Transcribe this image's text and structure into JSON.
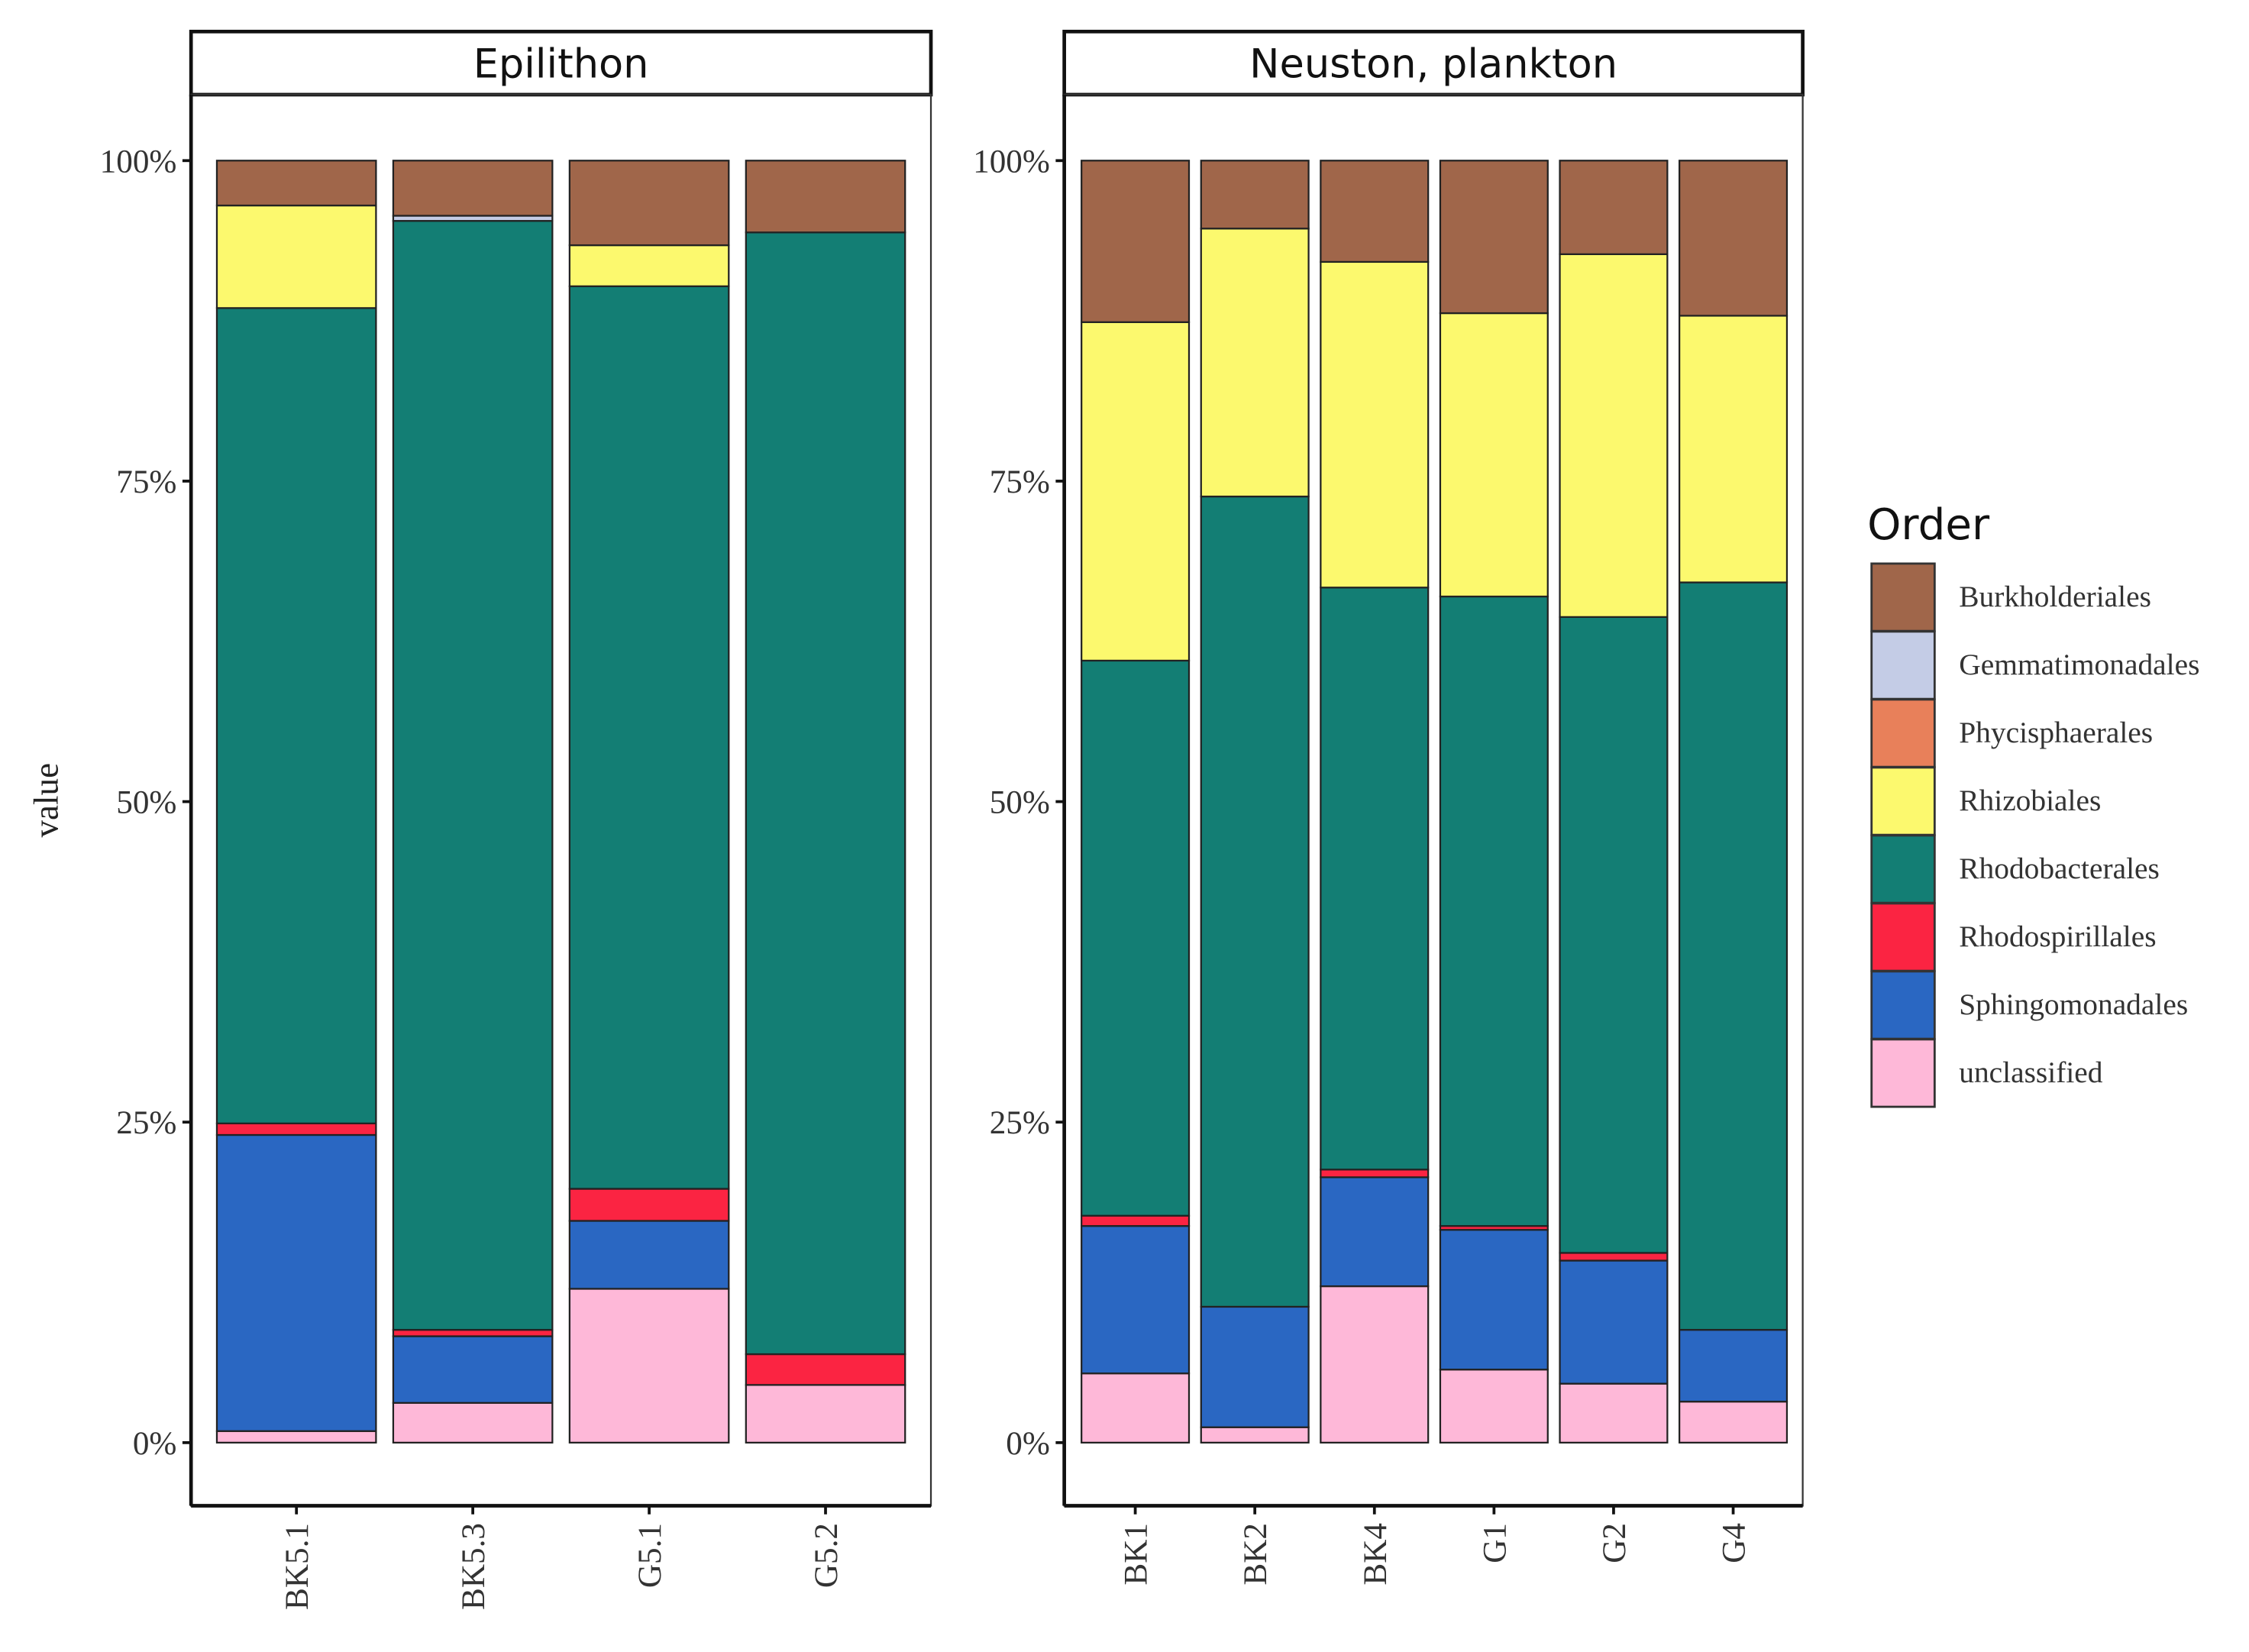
{
  "chart_data": {
    "type": "bar",
    "stacked": true,
    "normalized": true,
    "ylabel": "value",
    "xlabel": "",
    "ylim": [
      0,
      100
    ],
    "yticks": [
      "0%",
      "25%",
      "50%",
      "75%",
      "100%"
    ],
    "ytick_values": [
      0,
      25,
      50,
      75,
      100
    ],
    "legend": {
      "title": "Order",
      "placement": "right",
      "entries": [
        "Burkholderiales",
        "Gemmatimonadales",
        "Phycisphaerales",
        "Rhizobiales",
        "Rhodobacterales",
        "Rhodospirillales",
        "Sphingomonadales",
        "unclassified"
      ]
    },
    "colors": {
      "Burkholderiales": "#a0664a",
      "Gemmatimonadales": "#c4cce6",
      "Phycisphaerales": "#e8805a",
      "Rhizobiales": "#fcf96e",
      "Rhodobacterales": "#137e74",
      "Rhodospirillales": "#fb2442",
      "Sphingomonadales": "#2a67c2",
      "unclassified": "#feb8d8"
    },
    "stack_order_bottom_to_top": [
      "unclassified",
      "Sphingomonadales",
      "Rhodospirillales",
      "Rhodobacterales",
      "Rhizobiales",
      "Phycisphaerales",
      "Gemmatimonadales",
      "Burkholderiales"
    ],
    "panels": [
      {
        "title": "Epilithon",
        "categories": [
          "BK5.1",
          "BK5.3",
          "G5.1",
          "G5.2"
        ],
        "series": [
          {
            "name": "unclassified",
            "values": [
              0.9,
              3.1,
              12.0,
              4.5
            ]
          },
          {
            "name": "Sphingomonadales",
            "values": [
              23.1,
              5.2,
              5.3,
              0
            ]
          },
          {
            "name": "Rhodospirillales",
            "values": [
              0.9,
              0.5,
              2.5,
              2.4
            ]
          },
          {
            "name": "Rhodobacterales",
            "values": [
              63.6,
              86.5,
              70.4,
              87.5
            ]
          },
          {
            "name": "Rhizobiales",
            "values": [
              8.0,
              0,
              3.2,
              0
            ]
          },
          {
            "name": "Phycisphaerales",
            "values": [
              0,
              0,
              0,
              0
            ]
          },
          {
            "name": "Gemmatimonadales",
            "values": [
              0,
              0.4,
              0,
              0
            ]
          },
          {
            "name": "Burkholderiales",
            "values": [
              3.5,
              4.3,
              6.6,
              5.6
            ]
          }
        ]
      },
      {
        "title": "Neuston, plankton",
        "categories": [
          "BK1",
          "BK2",
          "BK4",
          "G1",
          "G2",
          "G4"
        ],
        "series": [
          {
            "name": "unclassified",
            "values": [
              5.4,
              1.2,
              12.2,
              5.7,
              4.6,
              3.2
            ]
          },
          {
            "name": "Sphingomonadales",
            "values": [
              11.5,
              9.4,
              8.5,
              10.9,
              9.6,
              5.6
            ]
          },
          {
            "name": "Rhodospirillales",
            "values": [
              0.8,
              0,
              0.6,
              0.3,
              0.6,
              0
            ]
          },
          {
            "name": "Rhodobacterales",
            "values": [
              43.3,
              63.2,
              45.4,
              49.1,
              49.6,
              58.3
            ]
          },
          {
            "name": "Rhizobiales",
            "values": [
              26.4,
              20.9,
              25.4,
              22.1,
              28.3,
              20.8
            ]
          },
          {
            "name": "Phycisphaerales",
            "values": [
              0,
              0,
              0,
              0,
              0,
              0
            ]
          },
          {
            "name": "Gemmatimonadales",
            "values": [
              0,
              0,
              0,
              0,
              0,
              0
            ]
          },
          {
            "name": "Burkholderiales",
            "values": [
              12.6,
              5.3,
              7.9,
              11.9,
              7.3,
              12.1
            ]
          }
        ]
      }
    ]
  }
}
